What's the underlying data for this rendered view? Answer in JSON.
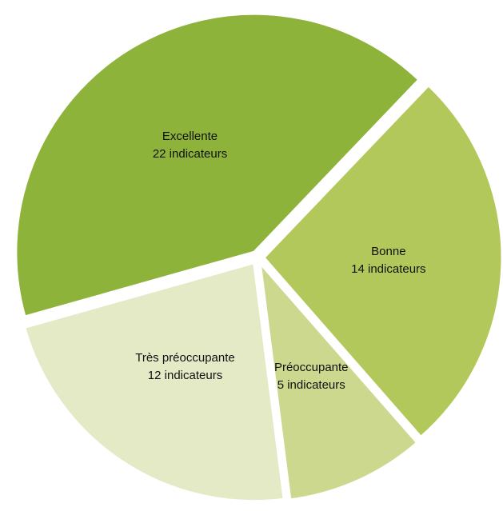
{
  "chart_data": {
    "type": "pie",
    "categories": [
      "Bonne",
      "Préoccupante",
      "Très préoccupante",
      "Excellente"
    ],
    "values": [
      14,
      5,
      12,
      22
    ],
    "value_labels": [
      "14 indicateurs",
      "5 indicateurs",
      "12 indicateurs",
      "22 indicateurs"
    ],
    "colors": [
      "#b3c85b",
      "#cdd88f",
      "#e4e9c6",
      "#8db33a"
    ]
  }
}
